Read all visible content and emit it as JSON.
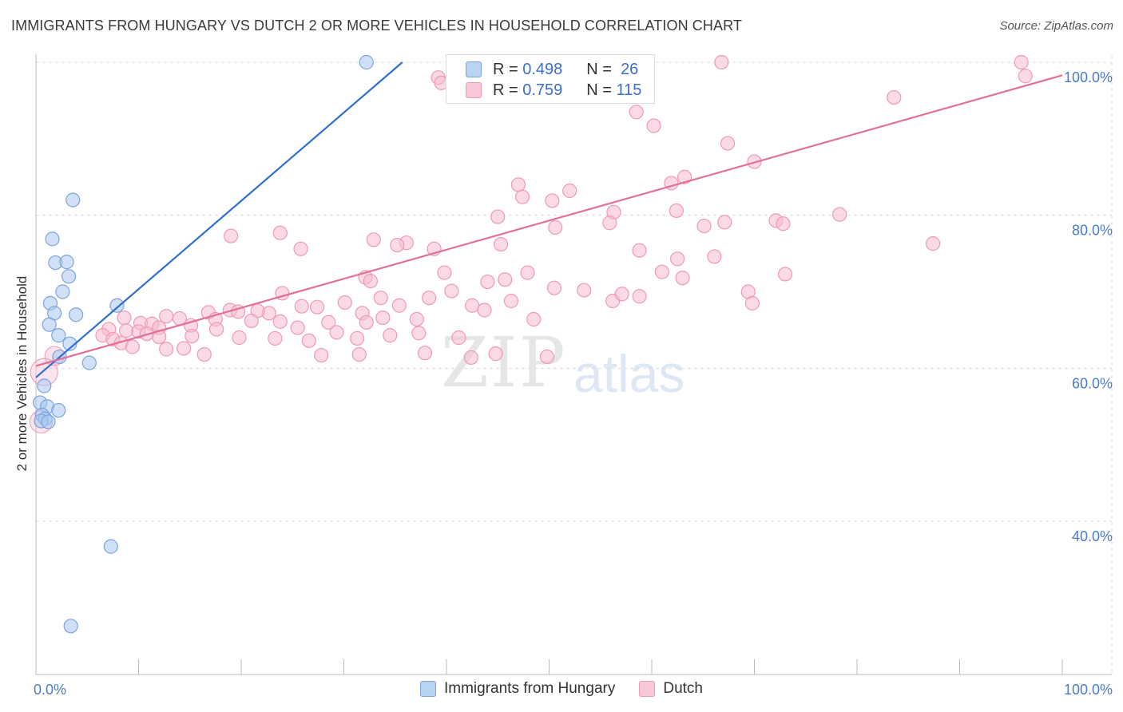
{
  "title": "IMMIGRANTS FROM HUNGARY VS DUTCH 2 OR MORE VEHICLES IN HOUSEHOLD CORRELATION CHART",
  "source": "Source: ZipAtlas.com",
  "watermark": {
    "zip": "ZIP",
    "atlas": "atlas"
  },
  "colors": {
    "hungary_fill": "#aac8f0",
    "hungary_stroke": "#7aa4dd",
    "hungary_line": "#2f6fd0",
    "dutch_fill": "#f7bcd0",
    "dutch_stroke": "#ee99b6",
    "dutch_line": "#e0709a",
    "grid": "#dddddd",
    "axis_text": "#4a7cc9"
  },
  "stats_legend": {
    "r_label": "R =",
    "n_label": "N =",
    "rows": [
      {
        "r": "0.498",
        "n": "26"
      },
      {
        "r": "0.759",
        "n": "115"
      }
    ]
  },
  "chart_data": {
    "type": "scatter",
    "title": "IMMIGRANTS FROM HUNGARY VS DUTCH 2 OR MORE VEHICLES IN HOUSEHOLD CORRELATION CHART",
    "xlabel": "",
    "ylabel": "2 or more Vehicles in Household",
    "xlim": [
      0,
      100
    ],
    "ylim": [
      20,
      102
    ],
    "x_tick_labels": [
      "0.0%",
      "100.0%"
    ],
    "y_tick_labels": [
      "40.0%",
      "60.0%",
      "80.0%",
      "100.0%"
    ],
    "y_ticks": [
      40,
      60,
      80,
      100
    ],
    "legend_position": "bottom",
    "series": [
      {
        "name": "Immigrants from Hungary",
        "points": [
          [
            32.2,
            100.0
          ],
          [
            3.6,
            82.0
          ],
          [
            1.6,
            76.9
          ],
          [
            1.9,
            73.8
          ],
          [
            3.0,
            73.9
          ],
          [
            3.2,
            72.0
          ],
          [
            2.6,
            70.0
          ],
          [
            7.9,
            68.2
          ],
          [
            1.4,
            68.5
          ],
          [
            1.8,
            67.2
          ],
          [
            3.9,
            67.0
          ],
          [
            1.3,
            65.7
          ],
          [
            2.2,
            64.3
          ],
          [
            3.3,
            63.2
          ],
          [
            2.3,
            61.5
          ],
          [
            5.2,
            60.7
          ],
          [
            0.8,
            57.7
          ],
          [
            0.4,
            55.5
          ],
          [
            1.1,
            55.0
          ],
          [
            2.2,
            54.5
          ],
          [
            0.6,
            53.9
          ],
          [
            0.9,
            53.4
          ],
          [
            0.5,
            53.1
          ],
          [
            1.2,
            53.0
          ],
          [
            7.3,
            36.7
          ],
          [
            3.4,
            26.3
          ]
        ],
        "trend": {
          "x": [
            0,
            35.7
          ],
          "y": [
            58.8,
            100.0
          ]
        }
      },
      {
        "name": "Dutch",
        "points": [
          [
            96.0,
            100.0
          ],
          [
            66.8,
            100.0
          ],
          [
            96.4,
            98.2
          ],
          [
            39.2,
            98.0
          ],
          [
            39.5,
            97.3
          ],
          [
            83.6,
            95.4
          ],
          [
            58.5,
            93.5
          ],
          [
            60.2,
            91.7
          ],
          [
            67.4,
            89.4
          ],
          [
            70.0,
            87.0
          ],
          [
            63.2,
            85.0
          ],
          [
            47.0,
            84.0
          ],
          [
            52.0,
            83.2
          ],
          [
            61.9,
            84.2
          ],
          [
            50.3,
            81.9
          ],
          [
            47.4,
            82.4
          ],
          [
            45.0,
            79.8
          ],
          [
            56.3,
            80.4
          ],
          [
            62.4,
            80.6
          ],
          [
            67.1,
            79.1
          ],
          [
            65.1,
            78.6
          ],
          [
            72.1,
            79.3
          ],
          [
            72.8,
            78.9
          ],
          [
            78.3,
            80.1
          ],
          [
            87.4,
            76.3
          ],
          [
            55.9,
            79.0
          ],
          [
            50.6,
            78.4
          ],
          [
            23.8,
            77.7
          ],
          [
            19.0,
            77.3
          ],
          [
            25.8,
            75.6
          ],
          [
            32.9,
            76.8
          ],
          [
            36.1,
            76.4
          ],
          [
            35.2,
            76.1
          ],
          [
            38.8,
            75.6
          ],
          [
            45.3,
            76.2
          ],
          [
            58.8,
            75.4
          ],
          [
            62.5,
            74.3
          ],
          [
            66.1,
            74.6
          ],
          [
            39.8,
            72.5
          ],
          [
            32.1,
            71.9
          ],
          [
            32.6,
            71.4
          ],
          [
            44.0,
            71.3
          ],
          [
            45.7,
            71.6
          ],
          [
            61.0,
            72.6
          ],
          [
            63.0,
            71.8
          ],
          [
            69.4,
            70.0
          ],
          [
            73.0,
            72.3
          ],
          [
            47.9,
            72.5
          ],
          [
            24.0,
            69.8
          ],
          [
            33.6,
            69.2
          ],
          [
            38.3,
            69.2
          ],
          [
            40.5,
            70.1
          ],
          [
            50.5,
            70.5
          ],
          [
            53.4,
            70.2
          ],
          [
            56.2,
            68.8
          ],
          [
            57.1,
            69.7
          ],
          [
            58.8,
            69.4
          ],
          [
            69.8,
            68.5
          ],
          [
            16.8,
            67.3
          ],
          [
            18.9,
            67.6
          ],
          [
            22.7,
            67.2
          ],
          [
            25.9,
            68.1
          ],
          [
            27.4,
            68.0
          ],
          [
            30.1,
            68.6
          ],
          [
            31.8,
            67.2
          ],
          [
            35.4,
            68.2
          ],
          [
            42.5,
            68.2
          ],
          [
            43.7,
            67.6
          ],
          [
            46.3,
            68.8
          ],
          [
            48.5,
            66.4
          ],
          [
            12.7,
            66.8
          ],
          [
            14.0,
            66.5
          ],
          [
            17.5,
            66.4
          ],
          [
            19.7,
            67.4
          ],
          [
            21.6,
            67.5
          ],
          [
            23.8,
            66.1
          ],
          [
            28.5,
            66.0
          ],
          [
            32.2,
            66.0
          ],
          [
            33.8,
            66.6
          ],
          [
            37.1,
            66.4
          ],
          [
            8.6,
            66.6
          ],
          [
            10.2,
            65.9
          ],
          [
            11.3,
            65.8
          ],
          [
            12.0,
            65.3
          ],
          [
            15.1,
            65.6
          ],
          [
            17.6,
            65.1
          ],
          [
            21.0,
            66.2
          ],
          [
            25.5,
            65.3
          ],
          [
            29.3,
            64.7
          ],
          [
            34.5,
            64.3
          ],
          [
            37.3,
            64.6
          ],
          [
            41.2,
            64.0
          ],
          [
            7.1,
            65.1
          ],
          [
            8.8,
            64.9
          ],
          [
            10.0,
            64.8
          ],
          [
            10.8,
            64.5
          ],
          [
            12.0,
            64.1
          ],
          [
            15.2,
            64.2
          ],
          [
            19.8,
            64.0
          ],
          [
            23.3,
            63.9
          ],
          [
            26.6,
            63.6
          ],
          [
            31.3,
            63.9
          ],
          [
            6.5,
            64.3
          ],
          [
            7.5,
            63.8
          ],
          [
            8.3,
            63.3
          ],
          [
            9.4,
            62.8
          ],
          [
            12.7,
            62.5
          ],
          [
            14.4,
            62.6
          ],
          [
            16.4,
            61.8
          ],
          [
            27.8,
            61.7
          ],
          [
            31.5,
            61.8
          ],
          [
            37.9,
            62.0
          ],
          [
            44.8,
            61.9
          ],
          [
            42.4,
            61.4
          ],
          [
            49.8,
            61.5
          ]
        ],
        "trend": {
          "x": [
            0,
            100
          ],
          "y": [
            60.3,
            98.3
          ]
        }
      }
    ]
  },
  "bottom_legend": [
    {
      "label": "Immigrants from Hungary"
    },
    {
      "label": "Dutch"
    }
  ]
}
